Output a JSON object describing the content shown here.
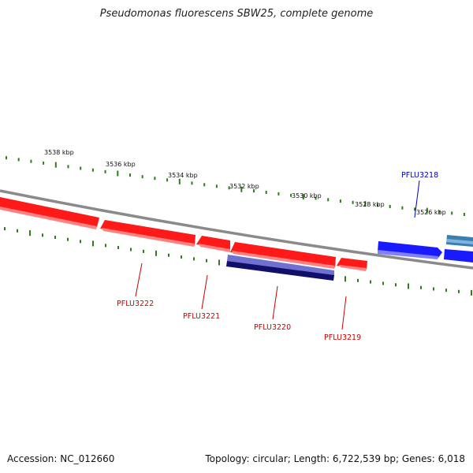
{
  "title": "Pseudomonas fluorescens SBW25, complete genome",
  "footer": {
    "accession": "Accession: NC_012660",
    "summary": "Topology: circular; Length: 6,722,539 bp; Genes: 6,018"
  },
  "colors": {
    "backbone": "#8a8a8a",
    "tick": "#2e7d1a",
    "reverse_gene": "#ff1a1a",
    "forward_gene": "#1a1aff",
    "reverse_label": "#cc0000",
    "forward_label": "#0000bb",
    "cds_dark": "#10106a",
    "cds_light": "#7070d0",
    "teal_gene": "#3a7fb0"
  },
  "scale_labels": [
    "3538 kbp",
    "3536 kbp",
    "3534 kbp",
    "3532 kbp",
    "3530 kbp",
    "3528 kbp",
    "3526 kbp"
  ],
  "genes": [
    {
      "label": "PFLU3222",
      "strand": "reverse"
    },
    {
      "label": "PFLU3221",
      "strand": "reverse"
    },
    {
      "label": "PFLU3220",
      "strand": "reverse"
    },
    {
      "label": "PFLU3219",
      "strand": "reverse"
    },
    {
      "label": "PFLU3218",
      "strand": "forward"
    }
  ]
}
